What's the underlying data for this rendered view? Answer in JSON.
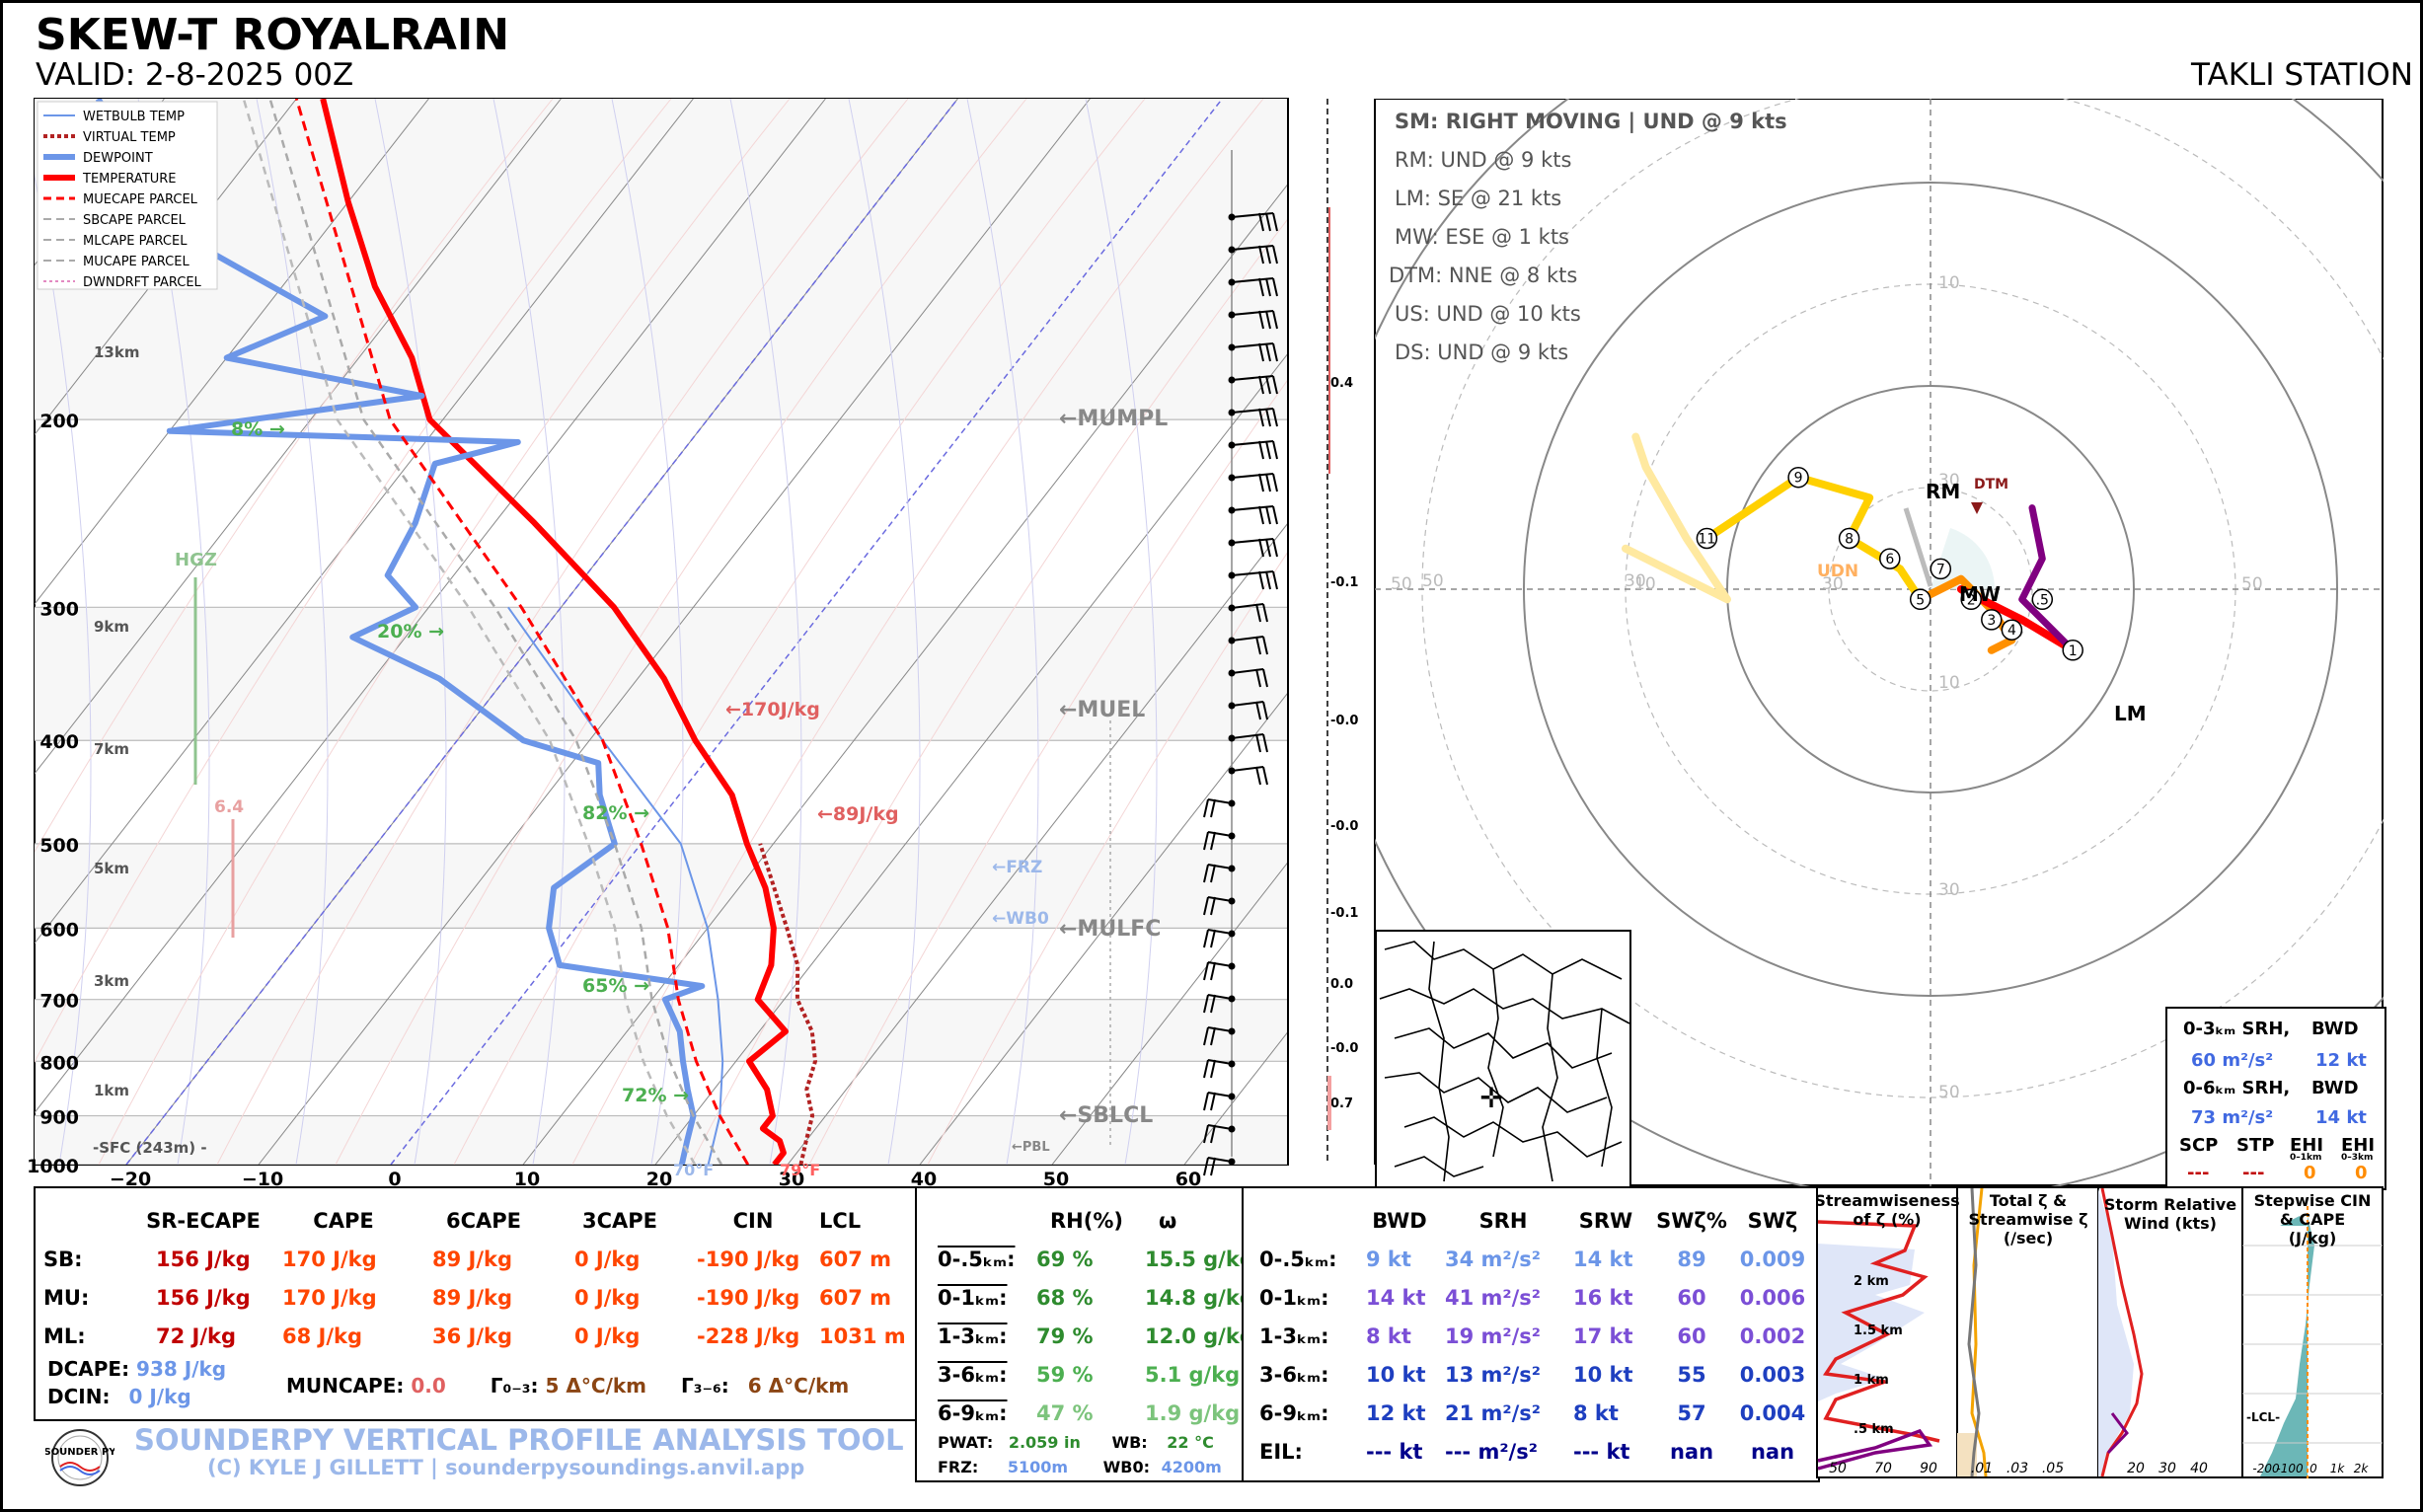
{
  "header": {
    "title": "SKEW-T ROYALRAIN",
    "valid": "VALID: 2-8-2025 00Z",
    "station": "TAKLI STATION"
  },
  "legend": {
    "items": [
      {
        "label": "WETBULB TEMP",
        "color": "#6c96e8"
      },
      {
        "label": "VIRTUAL TEMP",
        "color": "#b22222"
      },
      {
        "label": "DEWPOINT",
        "color": "#6c96e8"
      },
      {
        "label": "TEMPERATURE",
        "color": "#ff0000"
      },
      {
        "label": "MUECAPE PARCEL",
        "color": "#ff0000"
      },
      {
        "label": "SBCAPE PARCEL",
        "color": "#aaaaaa"
      },
      {
        "label": "MLCAPE PARCEL",
        "color": "#aaaaaa"
      },
      {
        "label": "MUCAPE PARCEL",
        "color": "#aaaaaa"
      },
      {
        "label": "DWNDRFT PARCEL",
        "color": "#c71585"
      }
    ]
  },
  "chart_data": [
    {
      "type": "line",
      "name": "skew-t",
      "ylim": [
        1000,
        100
      ],
      "xlim": [
        -20,
        60
      ],
      "log_y": true,
      "pressure_ticks": [
        "200",
        "300",
        "400",
        "500",
        "600",
        "700",
        "800",
        "900",
        "1000"
      ],
      "temp_ticks": [
        "−20",
        "−10",
        "0",
        "10",
        "20",
        "30",
        "40",
        "50",
        "60"
      ],
      "height_labels": [
        "13km",
        "9km",
        "7km",
        "5km",
        "3km",
        "1km"
      ],
      "sfc_label": "-SFC (243m) -",
      "series": [
        {
          "name": "TEMPERATURE",
          "points": [
            [
              1000,
              29
            ],
            [
              975,
              29
            ],
            [
              950,
              28
            ],
            [
              925,
              26
            ],
            [
              900,
              26
            ],
            [
              850,
              24
            ],
            [
              800,
              21
            ],
            [
              750,
              22
            ],
            [
              700,
              18
            ],
            [
              650,
              17
            ],
            [
              600,
              15
            ],
            [
              550,
              12
            ],
            [
              500,
              8
            ],
            [
              450,
              4
            ],
            [
              400,
              -2
            ],
            [
              350,
              -8
            ],
            [
              300,
              -16
            ],
            [
              250,
              -27
            ],
            [
              200,
              -41
            ],
            [
              175,
              -46
            ],
            [
              150,
              -53
            ],
            [
              125,
              -60
            ],
            [
              100,
              -68
            ]
          ]
        },
        {
          "name": "DEWPOINT",
          "points": [
            [
              1000,
              22
            ],
            [
              950,
              21
            ],
            [
              900,
              20
            ],
            [
              850,
              18
            ],
            [
              800,
              16
            ],
            [
              750,
              14
            ],
            [
              700,
              11
            ],
            [
              680,
              13
            ],
            [
              650,
              1
            ],
            [
              600,
              -2
            ],
            [
              550,
              -4
            ],
            [
              500,
              -2
            ],
            [
              450,
              -6
            ],
            [
              420,
              -8
            ],
            [
              400,
              -15
            ],
            [
              350,
              -25
            ],
            [
              320,
              -34
            ],
            [
              300,
              -31
            ],
            [
              280,
              -35
            ],
            [
              250,
              -36
            ],
            [
              220,
              -38
            ],
            [
              210,
              -33
            ],
            [
              205,
              -60
            ],
            [
              190,
              -43
            ],
            [
              175,
              -60
            ],
            [
              160,
              -55
            ],
            [
              140,
              -67
            ],
            [
              120,
              -76
            ],
            [
              100,
              -85
            ]
          ]
        },
        {
          "name": "VIRTUAL TEMP",
          "points": [
            [
              1000,
              31
            ],
            [
              950,
              30
            ],
            [
              900,
              29
            ],
            [
              850,
              27
            ],
            [
              800,
              26
            ],
            [
              750,
              24
            ],
            [
              700,
              21
            ],
            [
              650,
              19
            ],
            [
              600,
              16
            ],
            [
              500,
              9
            ]
          ]
        },
        {
          "name": "WETBULB TEMP",
          "points": [
            [
              1000,
              24
            ],
            [
              900,
              22
            ],
            [
              800,
              19
            ],
            [
              700,
              15
            ],
            [
              600,
              10
            ],
            [
              500,
              3
            ],
            [
              400,
              -9
            ],
            [
              300,
              -24
            ]
          ]
        },
        {
          "name": "MUECAPE PARCEL",
          "points": [
            [
              1000,
              27
            ],
            [
              900,
              22
            ],
            [
              800,
              17
            ],
            [
              700,
              12
            ],
            [
              600,
              7
            ],
            [
              500,
              0
            ],
            [
              400,
              -9
            ],
            [
              300,
              -23
            ],
            [
              200,
              -44
            ],
            [
              100,
              -70
            ]
          ]
        }
      ]
    },
    {
      "type": "scatter",
      "name": "hodograph",
      "ring_labels": [
        "10",
        "30",
        "50",
        "10",
        "30",
        "50",
        "10",
        "30",
        "50",
        "30",
        "50"
      ],
      "points": [
        {
          "label": "1",
          "u": 14,
          "v": -6
        },
        {
          "label": "2",
          "u": 4,
          "v": -1
        },
        {
          "label": "3",
          "u": 6,
          "v": -3
        },
        {
          "label": "4",
          "u": 8,
          "v": -4
        },
        {
          "label": ".5",
          "u": 11,
          "v": -1
        },
        {
          "label": "5",
          "u": -1,
          "v": -1
        },
        {
          "label": "6",
          "u": -4,
          "v": 3
        },
        {
          "label": "7",
          "u": 1,
          "v": 2
        },
        {
          "label": "8",
          "u": -8,
          "v": 5
        },
        {
          "label": "9",
          "u": -13,
          "v": 11
        },
        {
          "label": "11",
          "u": -22,
          "v": 5
        }
      ],
      "markers": [
        "RM",
        "DTM",
        "MW",
        "LM",
        "UDN"
      ]
    }
  ],
  "skewt_annotations": {
    "mumpl": "←MUMPL",
    "muel": "←MUEL",
    "mulfc": "←MULFC",
    "sblcl": "←SBLCL",
    "frz": "←FRZ",
    "wb0": "←WB0",
    "pbl": "←PBL",
    "cape1": "←170J/kg",
    "cape2": "←89J/kg",
    "hgz": "HGZ",
    "hgz_val": "6.4",
    "rh_8": "8% →",
    "rh_20": "20% →",
    "rh_82": "82% →",
    "rh_65": "65% →",
    "rh_72": "72% →",
    "sfc_temp": "79°F",
    "sfc_dew": "70°F",
    "omega_vals": [
      "0.4",
      "-0.1",
      "-0.0",
      "-0.0",
      "-0.1",
      "0.0",
      "-0.0",
      "0.7"
    ]
  },
  "hodo_text": {
    "sm": "SM: RIGHT MOVING | UND @ 9 kts",
    "rm": "RM: UND @ 9 kts",
    "lm": "LM: SE @ 21 kts",
    "mw": "MW: ESE @ 1 kts",
    "dtm": "DTM: NNE @ 8 kts",
    "us": "US: UND @ 10 kts",
    "ds": "DS: UND @ 9 kts"
  },
  "srh_box": {
    "h1": "0-3ₖₘ SRH,",
    "h1b": "BWD",
    "v1": "60 m²/s²",
    "v1b": "12 kt",
    "h2": "0-6ₖₘ SRH,",
    "h2b": "BWD",
    "v2": "73 m²/s²",
    "v2b": "14 kt",
    "scp": "SCP",
    "stp": "STP",
    "ehi1": "EHI",
    "ehi1s": "0–1km",
    "ehi3": "EHI",
    "ehi3s": "0–3km",
    "scp_v": "---",
    "stp_v": "---",
    "ehi1_v": "0",
    "ehi3_v": "0"
  },
  "thermo_table": {
    "headers": [
      "SR-ECAPE",
      "CAPE",
      "6CAPE",
      "3CAPE",
      "CIN",
      "LCL"
    ],
    "rows": [
      {
        "label": "SB:",
        "values": [
          "156 J/kg",
          "170 J/kg",
          "89 J/kg",
          "0 J/kg",
          "-190 J/kg",
          "607 m"
        ]
      },
      {
        "label": "MU:",
        "values": [
          "156 J/kg",
          "170 J/kg",
          "89 J/kg",
          "0 J/kg",
          "-190 J/kg",
          "607 m"
        ]
      },
      {
        "label": "ML:",
        "values": [
          "72 J/kg",
          "68 J/kg",
          "36 J/kg",
          "0 J/kg",
          "-228 J/kg",
          "1031 m"
        ]
      }
    ],
    "dcape_label": "DCAPE:",
    "dcape": "938 J/kg",
    "dcin_label": "DCIN:",
    "dcin": "0 J/kg",
    "muncape_label": "MUNCAPE:",
    "muncape": "0.0",
    "lr03_label": "Γ₀₋₃:",
    "lr03": "5 Δ°C/km",
    "lr36_label": "Γ₃₋₆:",
    "lr36": "6 Δ°C/km"
  },
  "moisture_table": {
    "headers": [
      "RH(%)",
      "ω"
    ],
    "rows": [
      {
        "label": "0-.5ₖₘ:",
        "rh": "69 %",
        "w": "15.5 g/kg"
      },
      {
        "label": "0-1ₖₘ:",
        "rh": "68 %",
        "w": "14.8 g/kg"
      },
      {
        "label": "1-3ₖₘ:",
        "rh": "79 %",
        "w": "12.0 g/kg"
      },
      {
        "label": "3-6ₖₘ:",
        "rh": "59 %",
        "w": "5.1 g/kg"
      },
      {
        "label": "6-9ₖₘ:",
        "rh": "47 %",
        "w": "1.9 g/kg"
      }
    ],
    "pwat_label": "PWAT:",
    "pwat": "2.059 in",
    "wb_label": "WB:",
    "wb": "22 °C",
    "frz_label": "FRZ:",
    "frz": "5100m",
    "wb0_label": "WB0:",
    "wb0": "4200m"
  },
  "kinematic_table": {
    "headers": [
      "BWD",
      "SRH",
      "SRW",
      "SWζ%",
      "SWζ"
    ],
    "rows": [
      {
        "label": "0-.5ₖₘ:",
        "values": [
          "9 kt",
          "34 m²/s²",
          "14 kt",
          "89",
          "0.009"
        ]
      },
      {
        "label": "0-1ₖₘ:",
        "values": [
          "14 kt",
          "41 m²/s²",
          "16 kt",
          "60",
          "0.006"
        ]
      },
      {
        "label": "1-3ₖₘ:",
        "values": [
          "8 kt",
          "19 m²/s²",
          "17 kt",
          "60",
          "0.002"
        ]
      },
      {
        "label": "3-6ₖₘ:",
        "values": [
          "10 kt",
          "13 m²/s²",
          "10 kt",
          "55",
          "0.003"
        ]
      },
      {
        "label": "6-9ₖₘ:",
        "values": [
          "12 kt",
          "21 m²/s²",
          "8 kt",
          "57",
          "0.004"
        ]
      },
      {
        "label": "EIL:",
        "values": [
          "--- kt",
          "--- m²/s²",
          "--- kt",
          "nan",
          "nan"
        ]
      }
    ]
  },
  "mini_panels": {
    "p1_title": "Streamwiseness of ζ (%)",
    "p1_ticks": [
      "50",
      "70",
      "90"
    ],
    "p1_heights": [
      "2 km",
      "1.5 km",
      "1 km",
      ".5 km"
    ],
    "p2_title": "Total ζ & Streamwise ζ (/sec)",
    "p2_ticks": [
      ".01",
      ".03",
      ".05"
    ],
    "p3_title": "Storm Relative Wind (kts)",
    "p3_ticks": [
      "20",
      "30",
      "40"
    ],
    "p4_title": "Stepwise CIN & CAPE (J/kg)",
    "p4_ticks": [
      "-200",
      "-100",
      "0",
      "1k",
      "2k"
    ],
    "p4_lcl": "-LCL-"
  },
  "footer": {
    "title": "SOUNDERPY VERTICAL PROFILE ANALYSIS TOOL",
    "credit": "(C) KYLE J GILLETT | sounderpysoundings.anvil.app",
    "logo_text": "SOUNDER PY"
  }
}
